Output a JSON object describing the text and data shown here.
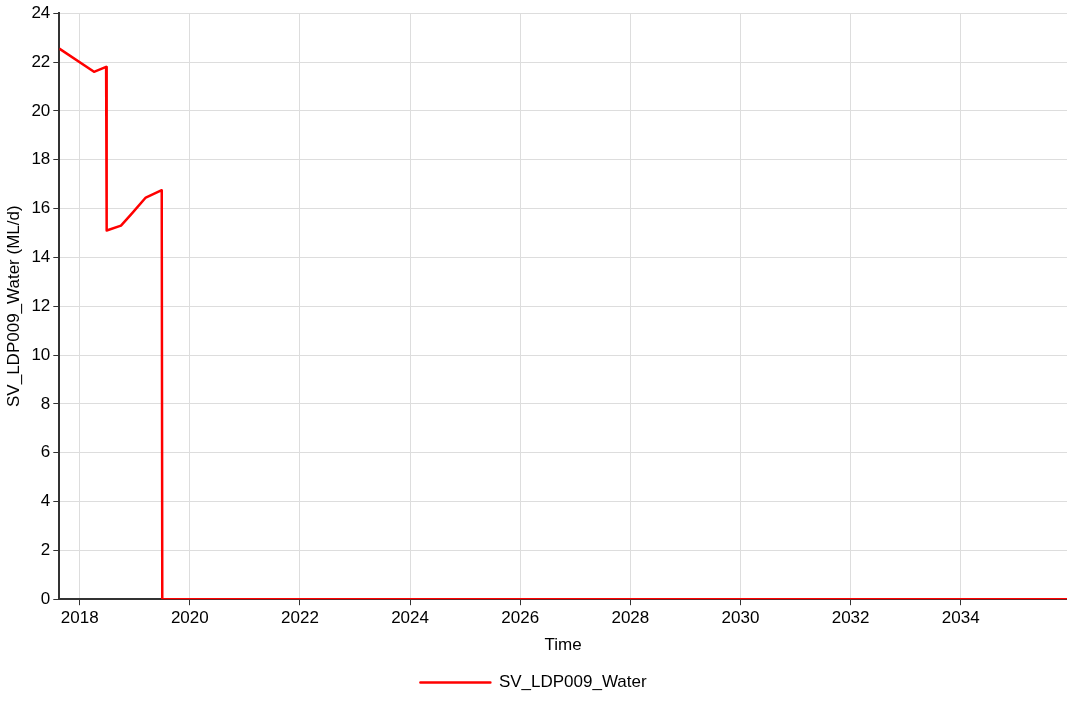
{
  "chart_data": {
    "type": "line",
    "xlabel": "Time",
    "ylabel": "SV_LDP009_Water (ML/d)",
    "x": [
      2017.63,
      2018.26,
      2018.48,
      2018.49,
      2018.75,
      2018.95,
      2019.2,
      2019.49,
      2019.5,
      2035.93
    ],
    "series": [
      {
        "name": "SV_LDP009_Water",
        "color": "#ff0000",
        "values": [
          22.55,
          21.6,
          21.8,
          15.1,
          15.3,
          15.8,
          16.45,
          16.75,
          0,
          0
        ]
      }
    ],
    "xlim": [
      2017.63,
      2035.93
    ],
    "xticks": [
      2018,
      2020,
      2022,
      2024,
      2026,
      2028,
      2030,
      2032,
      2034
    ],
    "ylim": [
      0,
      24
    ],
    "yticks": [
      0,
      2,
      4,
      6,
      8,
      10,
      12,
      14,
      16,
      18,
      20,
      22,
      24
    ],
    "grid": true,
    "legend": "bottom",
    "marker": "none",
    "line_style": "solid"
  }
}
